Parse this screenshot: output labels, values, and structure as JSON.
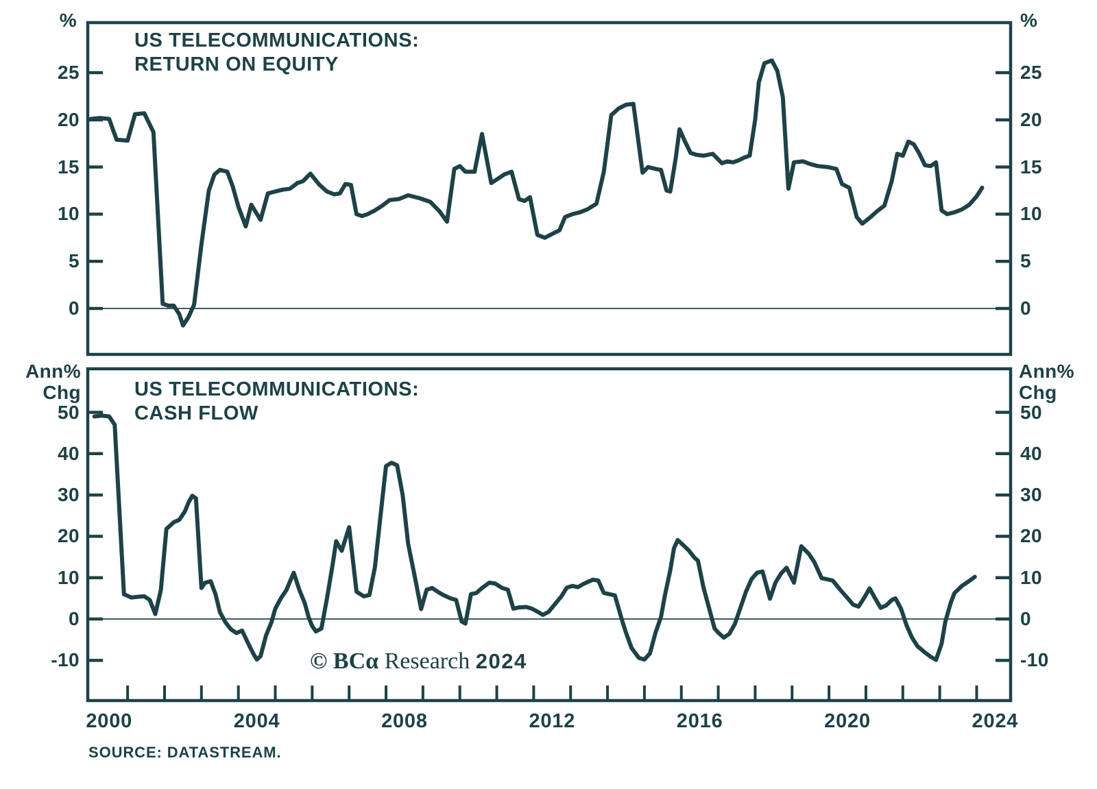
{
  "page": {
    "background": "#ffffff",
    "accent_color": "#1d4247",
    "source_text": "SOURCE: DATASTREAM.",
    "watermark": {
      "copyright_mark": "© BC",
      "alpha": "α",
      "name": " Research ",
      "year": "2024"
    }
  },
  "x_axis": {
    "xlim": [
      1999.42,
      2024.42
    ],
    "tick_label_years": [
      2000,
      2004,
      2008,
      2012,
      2016,
      2020,
      2024
    ],
    "minor_tick_start": 2000.5,
    "minor_tick_step": 1,
    "minor_tick_count": 24
  },
  "chart_data": [
    {
      "type": "line",
      "title_line1": "US TELECOMMUNICATIONS:",
      "title_line2": "RETURN ON EQUITY",
      "ylabel": "%",
      "unit_left_lines": [
        "%"
      ],
      "unit_right_lines": [
        "%"
      ],
      "ylim": [
        -4.87,
        30.31
      ],
      "yticks": [
        0,
        5,
        10,
        15,
        20,
        25
      ],
      "grid": false,
      "points": [
        [
          1999.5,
          20.1
        ],
        [
          1999.75,
          20.2
        ],
        [
          2000.0,
          20.1
        ],
        [
          2000.2,
          17.9
        ],
        [
          2000.5,
          17.8
        ],
        [
          2000.7,
          20.6
        ],
        [
          2000.95,
          20.7
        ],
        [
          2001.2,
          18.7
        ],
        [
          2001.45,
          0.5
        ],
        [
          2001.6,
          0.3
        ],
        [
          2001.75,
          0.3
        ],
        [
          2001.9,
          -0.6
        ],
        [
          2002.0,
          -1.8
        ],
        [
          2002.15,
          -0.9
        ],
        [
          2002.3,
          0.4
        ],
        [
          2002.5,
          6.8
        ],
        [
          2002.7,
          12.5
        ],
        [
          2002.85,
          14.2
        ],
        [
          2003.0,
          14.7
        ],
        [
          2003.2,
          14.5
        ],
        [
          2003.35,
          12.9
        ],
        [
          2003.5,
          10.8
        ],
        [
          2003.7,
          8.7
        ],
        [
          2003.85,
          11.0
        ],
        [
          2004.1,
          9.4
        ],
        [
          2004.3,
          12.2
        ],
        [
          2004.5,
          12.4
        ],
        [
          2004.7,
          12.6
        ],
        [
          2004.9,
          12.7
        ],
        [
          2005.1,
          13.3
        ],
        [
          2005.25,
          13.5
        ],
        [
          2005.45,
          14.3
        ],
        [
          2005.7,
          13.1
        ],
        [
          2005.9,
          12.4
        ],
        [
          2006.1,
          12.1
        ],
        [
          2006.25,
          12.2
        ],
        [
          2006.4,
          13.2
        ],
        [
          2006.55,
          13.1
        ],
        [
          2006.7,
          10.0
        ],
        [
          2006.85,
          9.8
        ],
        [
          2007.0,
          10.0
        ],
        [
          2007.2,
          10.4
        ],
        [
          2007.4,
          10.9
        ],
        [
          2007.6,
          11.5
        ],
        [
          2007.85,
          11.6
        ],
        [
          2008.1,
          12.0
        ],
        [
          2008.4,
          11.7
        ],
        [
          2008.7,
          11.3
        ],
        [
          2008.95,
          10.3
        ],
        [
          2009.15,
          9.2
        ],
        [
          2009.35,
          14.8
        ],
        [
          2009.5,
          15.1
        ],
        [
          2009.65,
          14.5
        ],
        [
          2009.9,
          14.5
        ],
        [
          2010.1,
          18.5
        ],
        [
          2010.35,
          13.3
        ],
        [
          2010.55,
          13.8
        ],
        [
          2010.7,
          14.2
        ],
        [
          2010.9,
          14.5
        ],
        [
          2011.1,
          11.6
        ],
        [
          2011.25,
          11.4
        ],
        [
          2011.4,
          11.8
        ],
        [
          2011.6,
          7.8
        ],
        [
          2011.8,
          7.5
        ],
        [
          2012.0,
          7.9
        ],
        [
          2012.2,
          8.3
        ],
        [
          2012.35,
          9.7
        ],
        [
          2012.55,
          10.0
        ],
        [
          2012.75,
          10.2
        ],
        [
          2012.95,
          10.5
        ],
        [
          2013.2,
          11.1
        ],
        [
          2013.4,
          14.5
        ],
        [
          2013.6,
          20.5
        ],
        [
          2013.8,
          21.2
        ],
        [
          2014.0,
          21.6
        ],
        [
          2014.2,
          21.7
        ],
        [
          2014.45,
          14.4
        ],
        [
          2014.6,
          15.0
        ],
        [
          2014.8,
          14.8
        ],
        [
          2014.95,
          14.7
        ],
        [
          2015.1,
          12.5
        ],
        [
          2015.2,
          12.4
        ],
        [
          2015.35,
          16.0
        ],
        [
          2015.45,
          19.0
        ],
        [
          2015.6,
          17.7
        ],
        [
          2015.75,
          16.5
        ],
        [
          2015.9,
          16.3
        ],
        [
          2016.1,
          16.2
        ],
        [
          2016.35,
          16.4
        ],
        [
          2016.6,
          15.4
        ],
        [
          2016.75,
          15.6
        ],
        [
          2016.9,
          15.5
        ],
        [
          2017.05,
          15.7
        ],
        [
          2017.2,
          16.0
        ],
        [
          2017.35,
          16.2
        ],
        [
          2017.5,
          20.0
        ],
        [
          2017.6,
          24.0
        ],
        [
          2017.75,
          26.0
        ],
        [
          2017.95,
          26.3
        ],
        [
          2018.1,
          25.2
        ],
        [
          2018.25,
          22.4
        ],
        [
          2018.4,
          12.7
        ],
        [
          2018.55,
          15.5
        ],
        [
          2018.8,
          15.6
        ],
        [
          2019.0,
          15.3
        ],
        [
          2019.2,
          15.1
        ],
        [
          2019.45,
          15.0
        ],
        [
          2019.7,
          14.8
        ],
        [
          2019.85,
          13.2
        ],
        [
          2020.05,
          12.8
        ],
        [
          2020.25,
          9.7
        ],
        [
          2020.4,
          9.0
        ],
        [
          2020.6,
          9.6
        ],
        [
          2020.8,
          10.3
        ],
        [
          2021.0,
          10.9
        ],
        [
          2021.2,
          13.5
        ],
        [
          2021.35,
          16.4
        ],
        [
          2021.5,
          16.2
        ],
        [
          2021.65,
          17.7
        ],
        [
          2021.8,
          17.4
        ],
        [
          2021.95,
          16.4
        ],
        [
          2022.1,
          15.2
        ],
        [
          2022.25,
          15.1
        ],
        [
          2022.4,
          15.5
        ],
        [
          2022.55,
          10.4
        ],
        [
          2022.7,
          10.0
        ],
        [
          2022.9,
          10.2
        ],
        [
          2023.1,
          10.5
        ],
        [
          2023.3,
          11.0
        ],
        [
          2023.5,
          11.9
        ],
        [
          2023.65,
          12.8
        ]
      ]
    },
    {
      "type": "line",
      "title_line1": "US TELECOMMUNICATIONS:",
      "title_line2": "CASH FLOW",
      "ylabel": "Ann% Chg",
      "unit_left_lines": [
        "Ann%",
        "Chg"
      ],
      "unit_right_lines": [
        "Ann%",
        "Chg"
      ],
      "ylim": [
        -19.73,
        60.53
      ],
      "yticks": [
        -10,
        0,
        10,
        20,
        30,
        40,
        50
      ],
      "grid": false,
      "points": [
        [
          1999.6,
          49.0
        ],
        [
          1999.8,
          49.2
        ],
        [
          2000.0,
          49.0
        ],
        [
          2000.15,
          47.0
        ],
        [
          2000.4,
          6.0
        ],
        [
          2000.6,
          5.2
        ],
        [
          2000.8,
          5.4
        ],
        [
          2000.95,
          5.5
        ],
        [
          2001.1,
          4.6
        ],
        [
          2001.25,
          1.2
        ],
        [
          2001.4,
          7.0
        ],
        [
          2001.55,
          21.8
        ],
        [
          2001.75,
          23.4
        ],
        [
          2001.9,
          24.0
        ],
        [
          2002.05,
          26.0
        ],
        [
          2002.15,
          28.2
        ],
        [
          2002.25,
          29.8
        ],
        [
          2002.35,
          29.2
        ],
        [
          2002.5,
          7.5
        ],
        [
          2002.6,
          8.8
        ],
        [
          2002.75,
          9.1
        ],
        [
          2002.88,
          6.0
        ],
        [
          2003.0,
          1.7
        ],
        [
          2003.15,
          -0.8
        ],
        [
          2003.3,
          -2.5
        ],
        [
          2003.45,
          -3.4
        ],
        [
          2003.6,
          -2.8
        ],
        [
          2003.75,
          -5.6
        ],
        [
          2003.9,
          -8.3
        ],
        [
          2004.0,
          -9.8
        ],
        [
          2004.1,
          -9.0
        ],
        [
          2004.25,
          -4.0
        ],
        [
          2004.4,
          -0.7
        ],
        [
          2004.5,
          2.5
        ],
        [
          2004.65,
          5.0
        ],
        [
          2004.8,
          7.0
        ],
        [
          2004.9,
          9.1
        ],
        [
          2005.0,
          11.2
        ],
        [
          2005.15,
          7.1
        ],
        [
          2005.3,
          3.8
        ],
        [
          2005.4,
          0.5
        ],
        [
          2005.5,
          -1.7
        ],
        [
          2005.6,
          -3.0
        ],
        [
          2005.75,
          -2.3
        ],
        [
          2005.9,
          5.0
        ],
        [
          2006.05,
          13.0
        ],
        [
          2006.15,
          18.8
        ],
        [
          2006.3,
          16.5
        ],
        [
          2006.5,
          22.2
        ],
        [
          2006.7,
          6.6
        ],
        [
          2006.9,
          5.5
        ],
        [
          2007.05,
          5.8
        ],
        [
          2007.2,
          12.6
        ],
        [
          2007.35,
          25.0
        ],
        [
          2007.5,
          37.0
        ],
        [
          2007.65,
          37.8
        ],
        [
          2007.8,
          37.2
        ],
        [
          2007.95,
          30.0
        ],
        [
          2008.1,
          18.2
        ],
        [
          2008.3,
          9.3
        ],
        [
          2008.45,
          2.4
        ],
        [
          2008.6,
          7.1
        ],
        [
          2008.75,
          7.5
        ],
        [
          2008.9,
          6.6
        ],
        [
          2009.05,
          5.8
        ],
        [
          2009.25,
          5.0
        ],
        [
          2009.4,
          4.6
        ],
        [
          2009.55,
          -0.6
        ],
        [
          2009.65,
          -1.1
        ],
        [
          2009.8,
          6.0
        ],
        [
          2009.95,
          6.3
        ],
        [
          2010.1,
          7.5
        ],
        [
          2010.3,
          8.8
        ],
        [
          2010.45,
          8.6
        ],
        [
          2010.65,
          7.5
        ],
        [
          2010.8,
          7.1
        ],
        [
          2010.95,
          2.5
        ],
        [
          2011.1,
          2.8
        ],
        [
          2011.3,
          2.9
        ],
        [
          2011.45,
          2.5
        ],
        [
          2011.6,
          1.8
        ],
        [
          2011.75,
          1.0
        ],
        [
          2011.9,
          1.7
        ],
        [
          2012.05,
          3.3
        ],
        [
          2012.25,
          5.5
        ],
        [
          2012.4,
          7.6
        ],
        [
          2012.55,
          8.0
        ],
        [
          2012.7,
          7.7
        ],
        [
          2012.85,
          8.5
        ],
        [
          2013.0,
          9.1
        ],
        [
          2013.1,
          9.5
        ],
        [
          2013.25,
          9.3
        ],
        [
          2013.4,
          6.3
        ],
        [
          2013.55,
          6.0
        ],
        [
          2013.7,
          5.7
        ],
        [
          2013.9,
          -0.5
        ],
        [
          2014.0,
          -3.3
        ],
        [
          2014.15,
          -7.0
        ],
        [
          2014.35,
          -9.4
        ],
        [
          2014.5,
          -9.8
        ],
        [
          2014.65,
          -8.3
        ],
        [
          2014.8,
          -3.3
        ],
        [
          2014.95,
          0.5
        ],
        [
          2015.05,
          5.5
        ],
        [
          2015.2,
          11.8
        ],
        [
          2015.3,
          17.1
        ],
        [
          2015.4,
          19.1
        ],
        [
          2015.55,
          17.9
        ],
        [
          2015.7,
          16.6
        ],
        [
          2015.85,
          14.9
        ],
        [
          2015.95,
          14.1
        ],
        [
          2016.1,
          7.6
        ],
        [
          2016.25,
          2.7
        ],
        [
          2016.4,
          -2.3
        ],
        [
          2016.5,
          -3.3
        ],
        [
          2016.65,
          -4.5
        ],
        [
          2016.8,
          -3.6
        ],
        [
          2016.95,
          -1.2
        ],
        [
          2017.1,
          2.7
        ],
        [
          2017.25,
          6.6
        ],
        [
          2017.4,
          9.6
        ],
        [
          2017.55,
          11.2
        ],
        [
          2017.7,
          11.5
        ],
        [
          2017.9,
          4.9
        ],
        [
          2018.05,
          8.8
        ],
        [
          2018.2,
          11.0
        ],
        [
          2018.35,
          12.4
        ],
        [
          2018.55,
          8.8
        ],
        [
          2018.75,
          17.6
        ],
        [
          2018.95,
          15.8
        ],
        [
          2019.1,
          13.8
        ],
        [
          2019.3,
          9.9
        ],
        [
          2019.45,
          9.6
        ],
        [
          2019.6,
          9.3
        ],
        [
          2019.8,
          7.1
        ],
        [
          2020.0,
          5.1
        ],
        [
          2020.15,
          3.5
        ],
        [
          2020.3,
          3.0
        ],
        [
          2020.45,
          5.1
        ],
        [
          2020.6,
          7.4
        ],
        [
          2020.75,
          5.0
        ],
        [
          2020.9,
          2.7
        ],
        [
          2021.05,
          3.3
        ],
        [
          2021.2,
          4.6
        ],
        [
          2021.3,
          5.0
        ],
        [
          2021.45,
          2.5
        ],
        [
          2021.6,
          -1.5
        ],
        [
          2021.75,
          -4.5
        ],
        [
          2021.9,
          -6.6
        ],
        [
          2022.1,
          -8.1
        ],
        [
          2022.25,
          -9.1
        ],
        [
          2022.4,
          -9.9
        ],
        [
          2022.55,
          -6.0
        ],
        [
          2022.65,
          -0.7
        ],
        [
          2022.8,
          4.0
        ],
        [
          2022.9,
          6.3
        ],
        [
          2023.1,
          8.0
        ],
        [
          2023.3,
          9.2
        ],
        [
          2023.45,
          10.2
        ]
      ]
    }
  ]
}
